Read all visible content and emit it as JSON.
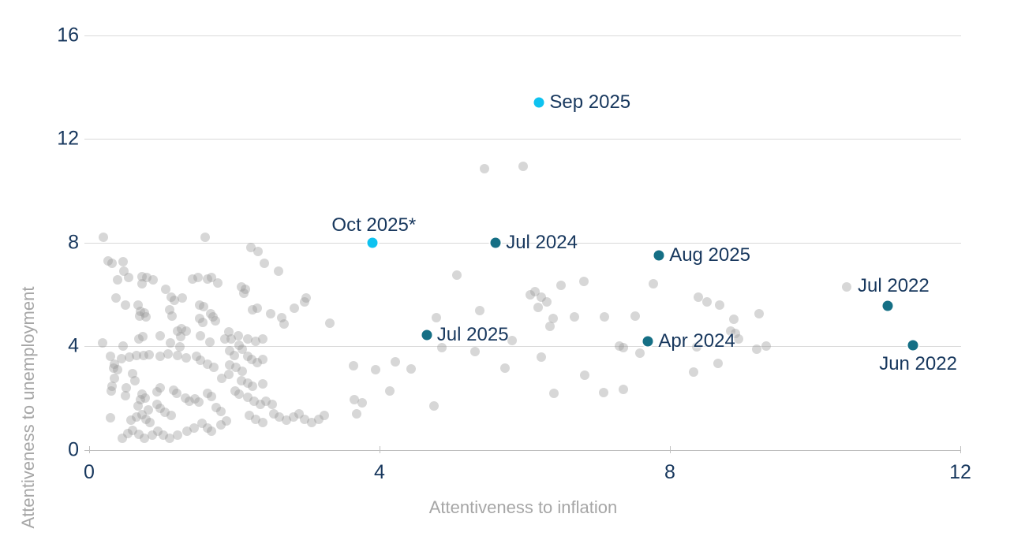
{
  "chart_data": {
    "type": "scatter",
    "xlabel": "Attentiveness to inflation",
    "ylabel": "Attentiveness to unemployment",
    "xlim": [
      0,
      12
    ],
    "ylim": [
      0,
      16
    ],
    "xticks": [
      0,
      4,
      8,
      12
    ],
    "yticks": [
      0,
      4,
      8,
      12,
      16
    ],
    "grid": "horizontal-gridlines-on",
    "legend_position": "none",
    "colors": {
      "highlight_recent": "#0ec2f0",
      "highlight_past": "#156f85",
      "background_point": "#d9d9d9",
      "tick_text": "#17375d",
      "axis_title_text": "#a6a6a6",
      "gridline": "#d9d9d9"
    },
    "highlighted_points": [
      {
        "label": "Sep 2025",
        "x": 6.2,
        "y": 13.4,
        "color": "recent",
        "label_pos": "right"
      },
      {
        "label": "Oct 2025*",
        "x": 3.9,
        "y": 8.0,
        "color": "recent",
        "label_pos": "above"
      },
      {
        "label": "Jul 2024",
        "x": 5.6,
        "y": 8.0,
        "color": "past",
        "label_pos": "right"
      },
      {
        "label": "Aug 2025",
        "x": 7.85,
        "y": 7.5,
        "color": "past",
        "label_pos": "right"
      },
      {
        "label": "Jul 2025",
        "x": 4.65,
        "y": 4.45,
        "color": "past",
        "label_pos": "right"
      },
      {
        "label": "Apr 2024",
        "x": 7.7,
        "y": 4.2,
        "color": "past",
        "label_pos": "right"
      },
      {
        "label": "Jul 2022",
        "x": 11.0,
        "y": 5.55,
        "color": "past",
        "label_pos": "above-offset"
      },
      {
        "label": "Jun 2022",
        "x": 11.35,
        "y": 4.05,
        "color": "past",
        "label_pos": "below-offset"
      }
    ],
    "background_points": [
      [
        5.45,
        10.85
      ],
      [
        5.98,
        10.95
      ],
      [
        0.2,
        8.2
      ],
      [
        1.6,
        8.2
      ],
      [
        2.23,
        7.8
      ],
      [
        2.33,
        7.65
      ],
      [
        0.26,
        7.3
      ],
      [
        0.32,
        7.2
      ],
      [
        0.47,
        7.25
      ],
      [
        2.41,
        7.2
      ],
      [
        2.61,
        6.9
      ],
      [
        0.48,
        6.9
      ],
      [
        0.39,
        6.55
      ],
      [
        0.54,
        6.65
      ],
      [
        0.73,
        6.7
      ],
      [
        0.79,
        6.65
      ],
      [
        0.73,
        6.4
      ],
      [
        0.88,
        6.55
      ],
      [
        1.42,
        6.6
      ],
      [
        1.5,
        6.65
      ],
      [
        1.63,
        6.6
      ],
      [
        1.69,
        6.65
      ],
      [
        1.77,
        6.45
      ],
      [
        2.1,
        6.3
      ],
      [
        2.15,
        6.2
      ],
      [
        2.13,
        6.05
      ],
      [
        2.99,
        5.85
      ],
      [
        2.97,
        5.7
      ],
      [
        5.07,
        6.75
      ],
      [
        6.14,
        6.1
      ],
      [
        6.5,
        6.35
      ],
      [
        6.81,
        6.5
      ],
      [
        7.77,
        6.4
      ],
      [
        10.43,
        6.3
      ],
      [
        0.37,
        5.85
      ],
      [
        0.5,
        5.6
      ],
      [
        1.05,
        6.2
      ],
      [
        1.13,
        5.9
      ],
      [
        1.17,
        5.78
      ],
      [
        1.28,
        5.85
      ],
      [
        0.67,
        5.6
      ],
      [
        0.71,
        5.35
      ],
      [
        0.76,
        5.28
      ],
      [
        0.7,
        5.18
      ],
      [
        0.78,
        5.15
      ],
      [
        1.52,
        5.6
      ],
      [
        1.58,
        5.53
      ],
      [
        1.67,
        5.25
      ],
      [
        1.71,
        5.15
      ],
      [
        1.11,
        5.4
      ],
      [
        1.14,
        5.18
      ],
      [
        2.25,
        5.4
      ],
      [
        2.32,
        5.48
      ],
      [
        2.5,
        5.25
      ],
      [
        2.65,
        5.1
      ],
      [
        2.83,
        5.48
      ],
      [
        4.78,
        5.1
      ],
      [
        5.38,
        5.38
      ],
      [
        6.08,
        6.0
      ],
      [
        6.23,
        5.9
      ],
      [
        6.3,
        5.7
      ],
      [
        6.18,
        5.5
      ],
      [
        6.39,
        5.08
      ],
      [
        6.35,
        4.78
      ],
      [
        6.68,
        5.13
      ],
      [
        7.1,
        5.13
      ],
      [
        7.52,
        5.18
      ],
      [
        8.39,
        5.9
      ],
      [
        8.51,
        5.7
      ],
      [
        8.68,
        5.6
      ],
      [
        9.23,
        5.25
      ],
      [
        8.88,
        5.03
      ],
      [
        1.22,
        4.6
      ],
      [
        1.27,
        4.67
      ],
      [
        1.34,
        4.6
      ],
      [
        1.52,
        5.08
      ],
      [
        1.56,
        4.92
      ],
      [
        1.74,
        4.97
      ],
      [
        2.68,
        4.85
      ],
      [
        3.32,
        4.9
      ],
      [
        8.84,
        4.6
      ],
      [
        8.9,
        4.5
      ],
      [
        8.95,
        4.3
      ],
      [
        0.18,
        4.13
      ],
      [
        0.47,
        4.0
      ],
      [
        0.69,
        4.3
      ],
      [
        0.74,
        4.37
      ],
      [
        0.98,
        4.4
      ],
      [
        1.12,
        4.13
      ],
      [
        1.25,
        3.98
      ],
      [
        1.53,
        4.4
      ],
      [
        1.66,
        4.16
      ],
      [
        1.26,
        4.37
      ],
      [
        1.92,
        4.55
      ],
      [
        1.87,
        4.3
      ],
      [
        1.96,
        4.27
      ],
      [
        2.05,
        4.4
      ],
      [
        2.18,
        4.27
      ],
      [
        2.29,
        4.2
      ],
      [
        2.39,
        4.27
      ],
      [
        4.86,
        3.95
      ],
      [
        5.31,
        3.8
      ],
      [
        5.83,
        4.22
      ],
      [
        6.23,
        3.6
      ],
      [
        7.3,
        4.0
      ],
      [
        7.36,
        3.95
      ],
      [
        7.59,
        3.73
      ],
      [
        8.37,
        3.98
      ],
      [
        9.2,
        3.9
      ],
      [
        9.33,
        4.0
      ],
      [
        0.29,
        3.63
      ],
      [
        0.35,
        3.32
      ],
      [
        0.45,
        3.53
      ],
      [
        0.55,
        3.6
      ],
      [
        0.65,
        3.66
      ],
      [
        0.75,
        3.66
      ],
      [
        0.83,
        3.68
      ],
      [
        0.98,
        3.63
      ],
      [
        1.09,
        3.7
      ],
      [
        1.22,
        3.66
      ],
      [
        1.34,
        3.56
      ],
      [
        1.48,
        3.63
      ],
      [
        1.53,
        3.47
      ],
      [
        1.63,
        3.32
      ],
      [
        1.72,
        3.19
      ],
      [
        2.06,
        4.03
      ],
      [
        2.11,
        3.9
      ],
      [
        1.94,
        3.83
      ],
      [
        2.0,
        3.66
      ],
      [
        2.18,
        3.63
      ],
      [
        2.24,
        3.5
      ],
      [
        2.32,
        3.37
      ],
      [
        2.39,
        3.5
      ],
      [
        3.64,
        3.25
      ],
      [
        3.95,
        3.1
      ],
      [
        4.22,
        3.4
      ],
      [
        4.44,
        3.13
      ],
      [
        5.73,
        3.15
      ],
      [
        8.66,
        3.35
      ],
      [
        8.33,
        3.0
      ],
      [
        0.34,
        3.17
      ],
      [
        0.39,
        3.09
      ],
      [
        0.6,
        2.95
      ],
      [
        0.63,
        2.68
      ],
      [
        1.94,
        3.29
      ],
      [
        2.02,
        3.19
      ],
      [
        2.11,
        3.05
      ],
      [
        0.35,
        2.77
      ],
      [
        0.32,
        2.46
      ],
      [
        0.3,
        2.28
      ],
      [
        0.51,
        2.41
      ],
      [
        0.5,
        2.11
      ],
      [
        1.92,
        2.92
      ],
      [
        1.83,
        2.77
      ],
      [
        2.1,
        2.68
      ],
      [
        2.18,
        2.58
      ],
      [
        2.25,
        2.46
      ],
      [
        2.39,
        2.56
      ],
      [
        0.73,
        2.16
      ],
      [
        0.77,
        2.01
      ],
      [
        0.94,
        2.26
      ],
      [
        0.98,
        2.41
      ],
      [
        1.16,
        2.31
      ],
      [
        1.21,
        2.18
      ],
      [
        1.33,
        2.01
      ],
      [
        1.38,
        1.88
      ],
      [
        1.46,
        1.98
      ],
      [
        1.51,
        1.85
      ],
      [
        1.63,
        2.18
      ],
      [
        1.68,
        2.06
      ],
      [
        2.01,
        2.28
      ],
      [
        2.07,
        2.16
      ],
      [
        2.18,
        2.04
      ],
      [
        4.14,
        2.27
      ],
      [
        6.4,
        2.19
      ],
      [
        7.09,
        2.22
      ],
      [
        7.36,
        2.34
      ],
      [
        6.83,
        2.9
      ],
      [
        0.67,
        1.7
      ],
      [
        0.71,
        1.94
      ],
      [
        0.81,
        1.55
      ],
      [
        0.94,
        1.75
      ],
      [
        0.98,
        1.6
      ],
      [
        1.04,
        1.47
      ],
      [
        1.13,
        1.33
      ],
      [
        1.75,
        1.63
      ],
      [
        1.81,
        1.5
      ],
      [
        2.27,
        1.88
      ],
      [
        2.36,
        1.75
      ],
      [
        2.44,
        1.88
      ],
      [
        2.52,
        1.75
      ],
      [
        2.54,
        1.4
      ],
      [
        2.62,
        1.27
      ],
      [
        2.72,
        1.15
      ],
      [
        2.81,
        1.27
      ],
      [
        2.89,
        1.4
      ],
      [
        2.97,
        1.19
      ],
      [
        3.07,
        1.06
      ],
      [
        3.16,
        1.19
      ],
      [
        3.24,
        1.33
      ],
      [
        3.65,
        1.95
      ],
      [
        3.76,
        1.83
      ],
      [
        3.68,
        1.4
      ],
      [
        4.75,
        1.71
      ],
      [
        0.29,
        1.25
      ],
      [
        0.58,
        1.15
      ],
      [
        0.65,
        1.27
      ],
      [
        0.73,
        1.37
      ],
      [
        0.78,
        1.2
      ],
      [
        0.84,
        1.06
      ],
      [
        0.46,
        0.46
      ],
      [
        0.53,
        0.64
      ],
      [
        0.6,
        0.76
      ],
      [
        0.69,
        0.62
      ],
      [
        0.76,
        0.46
      ],
      [
        0.87,
        0.59
      ],
      [
        0.95,
        0.74
      ],
      [
        1.02,
        0.59
      ],
      [
        1.11,
        0.46
      ],
      [
        1.22,
        0.59
      ],
      [
        1.35,
        0.74
      ],
      [
        1.45,
        0.86
      ],
      [
        1.55,
        1.02
      ],
      [
        1.63,
        0.86
      ],
      [
        1.69,
        0.74
      ],
      [
        1.89,
        1.13
      ],
      [
        1.81,
        0.98
      ],
      [
        2.21,
        1.33
      ],
      [
        2.29,
        1.19
      ],
      [
        2.39,
        1.06
      ]
    ]
  }
}
